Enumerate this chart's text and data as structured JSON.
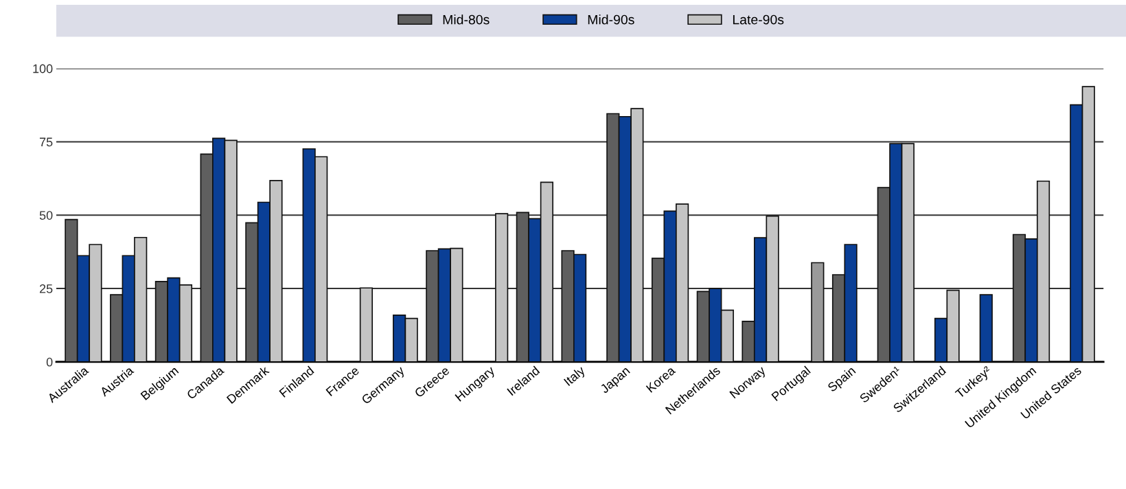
{
  "chart_data": {
    "type": "bar",
    "categories": [
      "Australia",
      "Austria",
      "Belgium",
      "Canada",
      "Denmark",
      "Finland",
      "France",
      "Germany",
      "Greece",
      "Hungary",
      "Ireland",
      "Italy",
      "Japan",
      "Korea",
      "Netherlands",
      "Norway",
      "Portugal",
      "Spain",
      "Sweden¹",
      "Switzerland",
      "Turkey²",
      "United Kingdom",
      "United States"
    ],
    "series": [
      {
        "name": "Mid-80s",
        "color": "#5f5f5f",
        "values": [
          48.5,
          22.9,
          27.4,
          70.8,
          47.4,
          null,
          null,
          null,
          37.9,
          null,
          50.9,
          37.9,
          84.6,
          35.3,
          24,
          13.8,
          null,
          29.7,
          59.4,
          null,
          null,
          43.4,
          null
        ]
      },
      {
        "name": "Mid-90s",
        "color": "#0a3f96",
        "values": [
          36.2,
          36.2,
          28.6,
          76.2,
          54.4,
          72.6,
          null,
          15.9,
          38.5,
          null,
          48.8,
          36.6,
          83.6,
          51.4,
          25,
          42.3,
          null,
          40,
          74.4,
          14.8,
          22.9,
          41.9,
          87.6
        ]
      },
      {
        "name": "Late-90s",
        "color": "#c4c4c4",
        "colors": [
          "#c4c4c4",
          "#c4c4c4",
          "#c4c4c4",
          "#c4c4c4",
          "#c4c4c4",
          "#c4c4c4",
          "#c4c4c4",
          "#c4c4c4",
          "#c4c4c4",
          "#c4c4c4",
          "#c4c4c4",
          "#c4c4c4",
          "#c4c4c4",
          "#c4c4c4",
          "#c4c4c4",
          "#c4c4c4",
          "#9a9a9a",
          "#c4c4c4",
          "#c4c4c4",
          "#c4c4c4",
          "#c4c4c4",
          "#c4c4c4",
          "#c4c4c4"
        ],
        "values": [
          40,
          42.4,
          26.2,
          75.5,
          61.8,
          69.9,
          25.2,
          14.8,
          38.7,
          50.5,
          61.2,
          null,
          86.3,
          53.8,
          17.6,
          49.7,
          33.8,
          null,
          74.4,
          24.4,
          null,
          61.6,
          93.8
        ]
      }
    ],
    "ylim": [
      0,
      100
    ],
    "yticks": [
      0,
      25,
      50,
      75,
      100
    ],
    "grid": "y",
    "legend": "top"
  }
}
